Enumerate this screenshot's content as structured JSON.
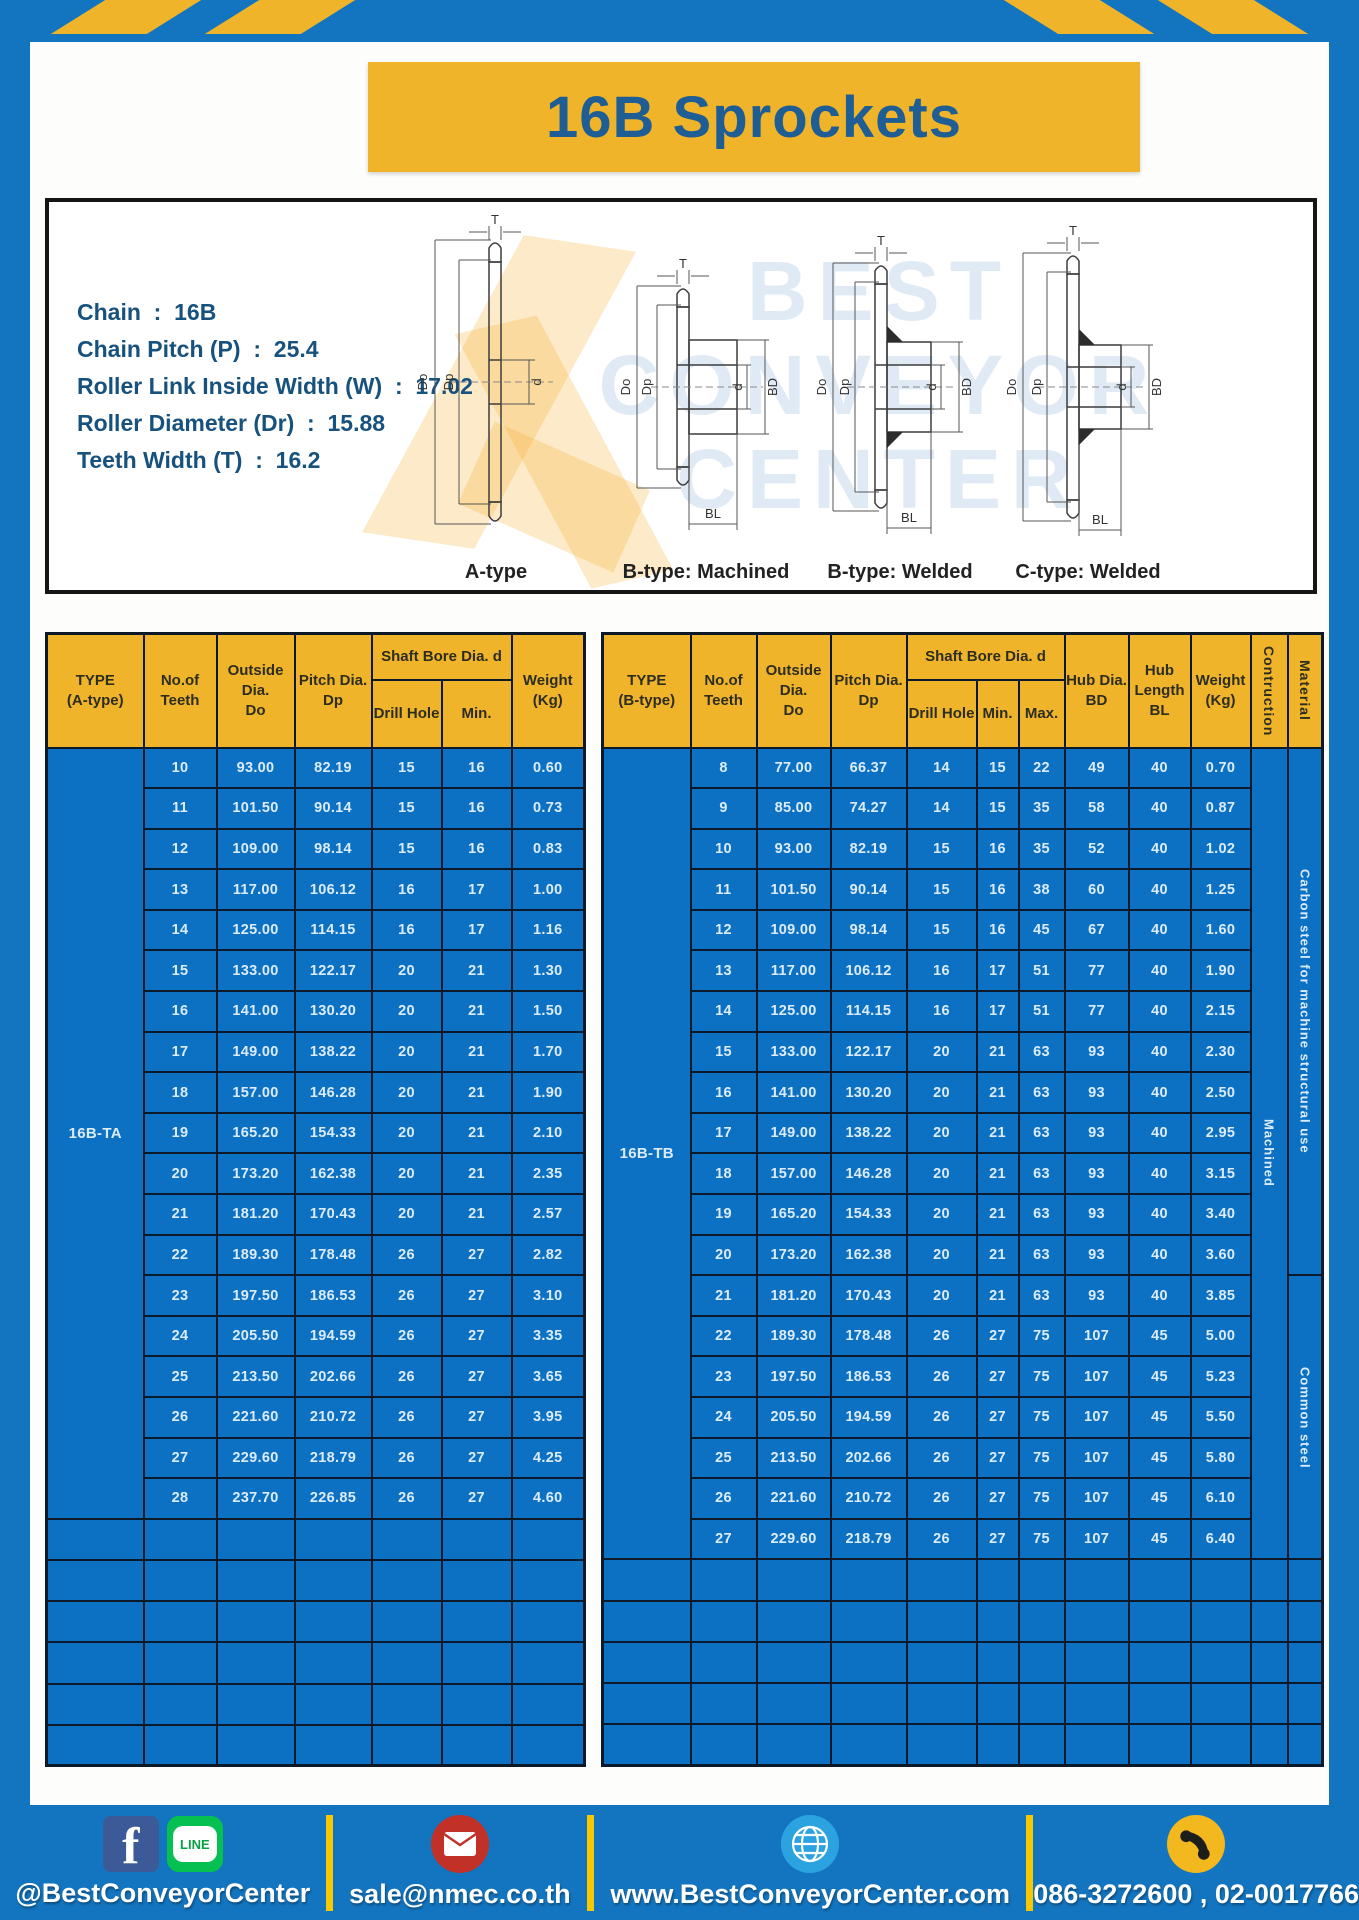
{
  "page": {
    "title": "16B Sprockets"
  },
  "specs": {
    "lines": [
      "Chain  :  16B",
      "Chain Pitch (P)  :  25.4",
      "Roller Link Inside Width (W)  :  17.02",
      "Roller Diameter (Dr)  :  15.88",
      "Teeth Width (T)  :  16.2"
    ]
  },
  "diagram": {
    "captions": [
      "A-type",
      "B-type: Machined",
      "B-type: Welded",
      "C-type: Welded"
    ],
    "dim_labels": {
      "t": "T",
      "dO": "Do",
      "dp": "Dp",
      "d": "d",
      "bd": "BD",
      "bl": "BL"
    },
    "watermark_lines": [
      "BEST",
      "CONVEYOR",
      "CENTER"
    ]
  },
  "left_table": {
    "type_label": "16B-TA",
    "header": {
      "type": [
        "TYPE",
        "(A-type)"
      ],
      "teeth": [
        "No.of",
        "Teeth"
      ],
      "outside": [
        "Outside",
        "Dia.",
        "Do"
      ],
      "pitch": [
        "Pitch Dia.",
        "Dp"
      ],
      "shaft_bore": "Shaft Bore Dia. d",
      "drill": "Drill Hole",
      "min": "Min.",
      "weight": [
        "Weight",
        "(Kg)"
      ]
    },
    "rows": [
      [
        "10",
        "93.00",
        "82.19",
        "15",
        "16",
        "0.60"
      ],
      [
        "11",
        "101.50",
        "90.14",
        "15",
        "16",
        "0.73"
      ],
      [
        "12",
        "109.00",
        "98.14",
        "15",
        "16",
        "0.83"
      ],
      [
        "13",
        "117.00",
        "106.12",
        "16",
        "17",
        "1.00"
      ],
      [
        "14",
        "125.00",
        "114.15",
        "16",
        "17",
        "1.16"
      ],
      [
        "15",
        "133.00",
        "122.17",
        "20",
        "21",
        "1.30"
      ],
      [
        "16",
        "141.00",
        "130.20",
        "20",
        "21",
        "1.50"
      ],
      [
        "17",
        "149.00",
        "138.22",
        "20",
        "21",
        "1.70"
      ],
      [
        "18",
        "157.00",
        "146.28",
        "20",
        "21",
        "1.90"
      ],
      [
        "19",
        "165.20",
        "154.33",
        "20",
        "21",
        "2.10"
      ],
      [
        "20",
        "173.20",
        "162.38",
        "20",
        "21",
        "2.35"
      ],
      [
        "21",
        "181.20",
        "170.43",
        "20",
        "21",
        "2.57"
      ],
      [
        "22",
        "189.30",
        "178.48",
        "26",
        "27",
        "2.82"
      ],
      [
        "23",
        "197.50",
        "186.53",
        "26",
        "27",
        "3.10"
      ],
      [
        "24",
        "205.50",
        "194.59",
        "26",
        "27",
        "3.35"
      ],
      [
        "25",
        "213.50",
        "202.66",
        "26",
        "27",
        "3.65"
      ],
      [
        "26",
        "221.60",
        "210.72",
        "26",
        "27",
        "3.95"
      ],
      [
        "27",
        "229.60",
        "218.79",
        "26",
        "27",
        "4.25"
      ],
      [
        "28",
        "237.70",
        "226.85",
        "26",
        "27",
        "4.60"
      ]
    ],
    "empty_row_count": 6
  },
  "right_table": {
    "type_label": "16B-TB",
    "header": {
      "type": [
        "TYPE",
        "(B-type)"
      ],
      "teeth": [
        "No.of",
        "Teeth"
      ],
      "outside": [
        "Outside",
        "Dia.",
        "Do"
      ],
      "pitch": [
        "Pitch Dia.",
        "Dp"
      ],
      "shaft_bore": "Shaft Bore Dia. d",
      "drill": "Drill Hole",
      "min": "Min.",
      "max": "Max.",
      "hub_dia": [
        "Hub Dia.",
        "BD"
      ],
      "hub_len": [
        "Hub",
        "Length",
        "BL"
      ],
      "weight": [
        "Weight",
        "(Kg)"
      ],
      "construction": "Contruction",
      "material": "Material"
    },
    "rows": [
      [
        "8",
        "77.00",
        "66.37",
        "14",
        "15",
        "22",
        "49",
        "40",
        "0.70"
      ],
      [
        "9",
        "85.00",
        "74.27",
        "14",
        "15",
        "35",
        "58",
        "40",
        "0.87"
      ],
      [
        "10",
        "93.00",
        "82.19",
        "15",
        "16",
        "35",
        "52",
        "40",
        "1.02"
      ],
      [
        "11",
        "101.50",
        "90.14",
        "15",
        "16",
        "38",
        "60",
        "40",
        "1.25"
      ],
      [
        "12",
        "109.00",
        "98.14",
        "15",
        "16",
        "45",
        "67",
        "40",
        "1.60"
      ],
      [
        "13",
        "117.00",
        "106.12",
        "16",
        "17",
        "51",
        "77",
        "40",
        "1.90"
      ],
      [
        "14",
        "125.00",
        "114.15",
        "16",
        "17",
        "51",
        "77",
        "40",
        "2.15"
      ],
      [
        "15",
        "133.00",
        "122.17",
        "20",
        "21",
        "63",
        "93",
        "40",
        "2.30"
      ],
      [
        "16",
        "141.00",
        "130.20",
        "20",
        "21",
        "63",
        "93",
        "40",
        "2.50"
      ],
      [
        "17",
        "149.00",
        "138.22",
        "20",
        "21",
        "63",
        "93",
        "40",
        "2.95"
      ],
      [
        "18",
        "157.00",
        "146.28",
        "20",
        "21",
        "63",
        "93",
        "40",
        "3.15"
      ],
      [
        "19",
        "165.20",
        "154.33",
        "20",
        "21",
        "63",
        "93",
        "40",
        "3.40"
      ],
      [
        "20",
        "173.20",
        "162.38",
        "20",
        "21",
        "63",
        "93",
        "40",
        "3.60"
      ],
      [
        "21",
        "181.20",
        "170.43",
        "20",
        "21",
        "63",
        "93",
        "40",
        "3.85"
      ],
      [
        "22",
        "189.30",
        "178.48",
        "26",
        "27",
        "75",
        "107",
        "45",
        "5.00"
      ],
      [
        "23",
        "197.50",
        "186.53",
        "26",
        "27",
        "75",
        "107",
        "45",
        "5.23"
      ],
      [
        "24",
        "205.50",
        "194.59",
        "26",
        "27",
        "75",
        "107",
        "45",
        "5.50"
      ],
      [
        "25",
        "213.50",
        "202.66",
        "26",
        "27",
        "75",
        "107",
        "45",
        "5.80"
      ],
      [
        "26",
        "221.60",
        "210.72",
        "26",
        "27",
        "75",
        "107",
        "45",
        "6.10"
      ],
      [
        "27",
        "229.60",
        "218.79",
        "26",
        "27",
        "75",
        "107",
        "45",
        "6.40"
      ]
    ],
    "construction_value": "Machined",
    "material_top": "Carbon steel for machine structural use",
    "material_top_rows": 13,
    "material_bottom": "Common steel",
    "empty_row_count": 5
  },
  "footer": {
    "facebook_glyph": "f",
    "line_label": "LINE",
    "social_handle": "@BestConveyorCenter",
    "email": "sale@nmec.co.th",
    "website": "www.BestConveyorCenter.com",
    "phones": "086-3272600 , 02-0017766"
  },
  "colors": {
    "frame_blue": "#1375bf",
    "cell_blue": "#0d71c3",
    "accent_yellow": "#f0b42a",
    "divider_yellow": "#f7c800",
    "title_navy": "#1f5e94"
  }
}
